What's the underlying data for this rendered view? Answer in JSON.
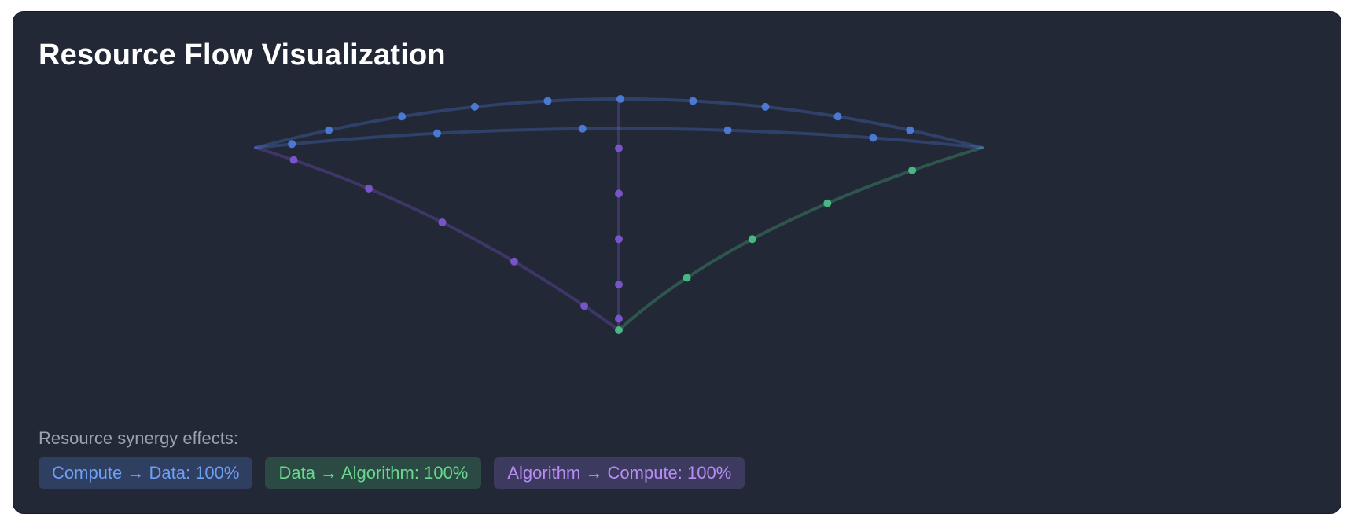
{
  "title": "Resource Flow Visualization",
  "colors": {
    "compute": "#4f7fe0",
    "data": "#4cc48a",
    "algorithm": "#8058d6"
  },
  "flows": [
    {
      "id": "compute-to-data-outer",
      "from": "Compute",
      "to": "Data",
      "color_key": "compute"
    },
    {
      "id": "compute-to-data-inner",
      "from": "Compute",
      "to": "Data",
      "color_key": "compute"
    },
    {
      "id": "data-to-algorithm",
      "from": "Data",
      "to": "Algorithm",
      "color_key": "data"
    },
    {
      "id": "algorithm-to-compute",
      "from": "Algorithm",
      "to": "Compute",
      "color_key": "algorithm"
    },
    {
      "id": "algorithm-vertical",
      "from": "Algorithm",
      "to": "Compute",
      "color_key": "algorithm"
    }
  ],
  "synergy": {
    "label": "Resource synergy effects:",
    "badges": [
      {
        "text": "Compute → Data: 100%",
        "color_key": "compute"
      },
      {
        "text": "Data → Algorithm: 100%",
        "color_key": "data"
      },
      {
        "text": "Algorithm → Compute: 100%",
        "color_key": "algorithm"
      }
    ]
  }
}
